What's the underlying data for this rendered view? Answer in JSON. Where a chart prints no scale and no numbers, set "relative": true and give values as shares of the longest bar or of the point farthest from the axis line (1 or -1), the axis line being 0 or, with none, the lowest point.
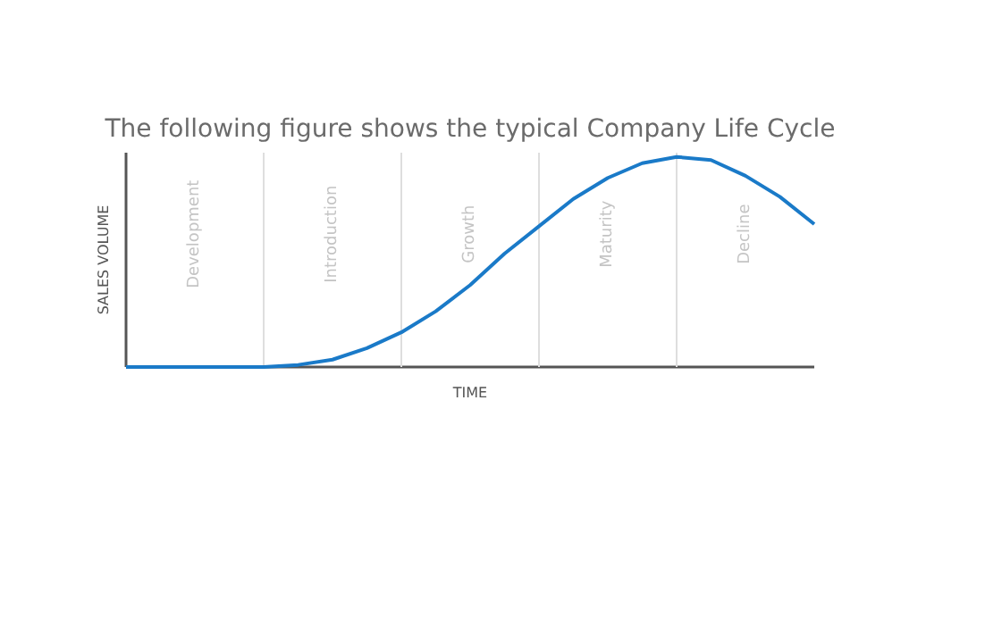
{
  "chart_data": {
    "type": "line",
    "title": "The following figure shows the typical Company Life Cycle",
    "xlabel": "TIME",
    "ylabel": "SALES VOLUME",
    "relative": true,
    "grid": "x",
    "categories": [
      null,
      null,
      null,
      null,
      null,
      null,
      null,
      null,
      null,
      null,
      null,
      null,
      null,
      null,
      null,
      null,
      null,
      null,
      null,
      null,
      null
    ],
    "series": [
      {
        "color": "#1a7ac8",
        "values": [
          0,
          0,
          0,
          0,
          0,
          0.01,
          0.035,
          0.09,
          0.165,
          0.265,
          0.39,
          0.54,
          0.67,
          0.8,
          0.9,
          0.97,
          1,
          0.985,
          0.91,
          0.81,
          0.68
        ]
      }
    ],
    "annotations": [
      "Development",
      "Introduction",
      "Growth",
      "Maturity",
      "Decline"
    ]
  }
}
